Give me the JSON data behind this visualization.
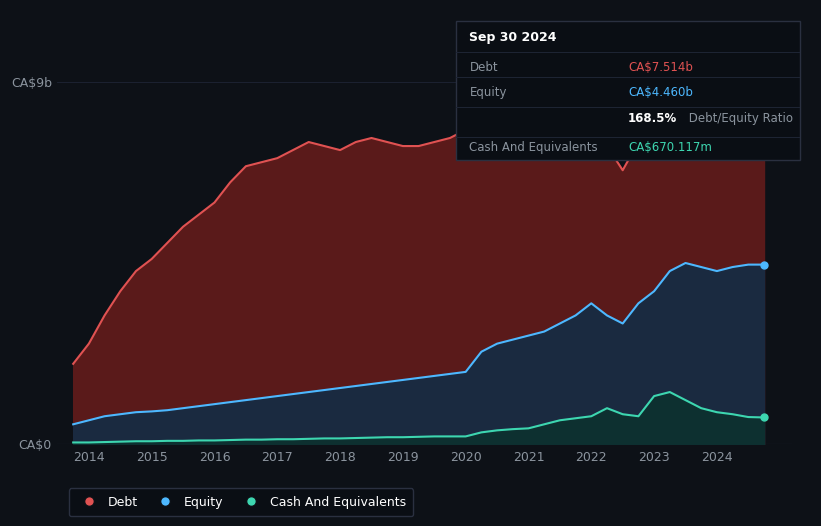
{
  "background_color": "#0d1117",
  "ylabel_top": "CA$9b",
  "ylabel_bottom": "CA$0",
  "debt_color": "#e05252",
  "equity_color": "#4db8ff",
  "cash_color": "#3dd6b0",
  "debt_fill_color": "#5a1a1a",
  "equity_fill_color": "#1a2a40",
  "cash_fill_color": "#0d3030",
  "tooltip": {
    "date": "Sep 30 2024",
    "debt_label": "Debt",
    "debt_value": "CA$7.514b",
    "equity_label": "Equity",
    "equity_value": "CA$4.460b",
    "ratio_bold": "168.5%",
    "ratio_rest": " Debt/Equity Ratio",
    "cash_label": "Cash And Equivalents",
    "cash_value": "CA$670.117m"
  },
  "years": [
    2013.75,
    2014.0,
    2014.25,
    2014.5,
    2014.75,
    2015.0,
    2015.25,
    2015.5,
    2015.75,
    2016.0,
    2016.25,
    2016.5,
    2016.75,
    2017.0,
    2017.25,
    2017.5,
    2017.75,
    2018.0,
    2018.25,
    2018.5,
    2018.75,
    2019.0,
    2019.25,
    2019.5,
    2019.75,
    2020.0,
    2020.25,
    2020.5,
    2020.75,
    2021.0,
    2021.25,
    2021.5,
    2021.75,
    2022.0,
    2022.25,
    2022.5,
    2022.75,
    2023.0,
    2023.25,
    2023.5,
    2023.75,
    2024.0,
    2024.25,
    2024.5,
    2024.75
  ],
  "debt": [
    2.0,
    2.5,
    3.2,
    3.8,
    4.3,
    4.6,
    5.0,
    5.4,
    5.7,
    6.0,
    6.5,
    6.9,
    7.0,
    7.1,
    7.3,
    7.5,
    7.4,
    7.3,
    7.5,
    7.6,
    7.5,
    7.4,
    7.4,
    7.5,
    7.6,
    7.8,
    8.5,
    8.1,
    7.8,
    7.6,
    7.5,
    7.4,
    7.3,
    8.0,
    7.4,
    6.8,
    7.5,
    7.2,
    7.6,
    7.8,
    7.6,
    7.5,
    7.6,
    7.5,
    7.514
  ],
  "equity": [
    0.5,
    0.6,
    0.7,
    0.75,
    0.8,
    0.82,
    0.85,
    0.9,
    0.95,
    1.0,
    1.05,
    1.1,
    1.15,
    1.2,
    1.25,
    1.3,
    1.35,
    1.4,
    1.45,
    1.5,
    1.55,
    1.6,
    1.65,
    1.7,
    1.75,
    1.8,
    2.3,
    2.5,
    2.6,
    2.7,
    2.8,
    3.0,
    3.2,
    3.5,
    3.2,
    3.0,
    3.5,
    3.8,
    4.3,
    4.5,
    4.4,
    4.3,
    4.4,
    4.46,
    4.46
  ],
  "cash": [
    0.05,
    0.05,
    0.06,
    0.07,
    0.08,
    0.08,
    0.09,
    0.09,
    0.1,
    0.1,
    0.11,
    0.12,
    0.12,
    0.13,
    0.13,
    0.14,
    0.15,
    0.15,
    0.16,
    0.17,
    0.18,
    0.18,
    0.19,
    0.2,
    0.2,
    0.2,
    0.3,
    0.35,
    0.38,
    0.4,
    0.5,
    0.6,
    0.65,
    0.7,
    0.9,
    0.75,
    0.7,
    1.2,
    1.3,
    1.1,
    0.9,
    0.8,
    0.75,
    0.68,
    0.67
  ],
  "xtick_years": [
    2014,
    2015,
    2016,
    2017,
    2018,
    2019,
    2020,
    2021,
    2022,
    2023,
    2024
  ],
  "ylim": [
    0,
    9
  ],
  "xlim": [
    2013.5,
    2025.2
  ]
}
